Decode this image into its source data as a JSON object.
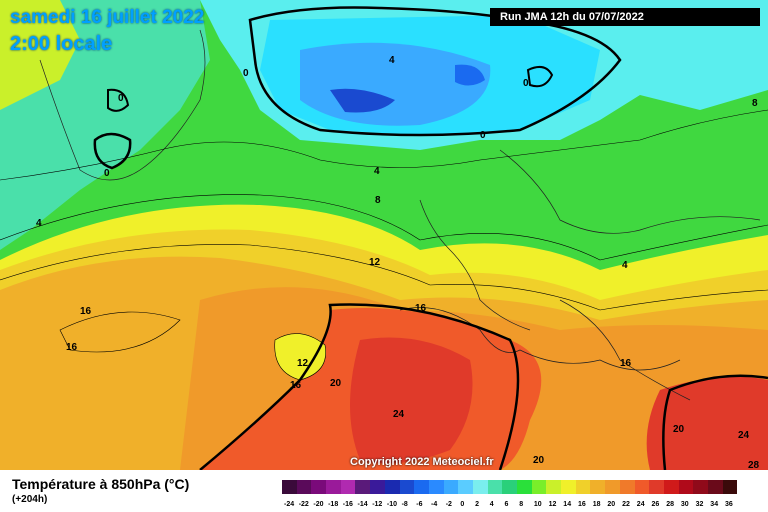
{
  "header": {
    "title": "samedi 16 juillet 2022",
    "subtitle": "2:00 locale",
    "run_info": "Run JMA 12h du 07/07/2022"
  },
  "copyright": "Copyright 2022 Meteociel.fr",
  "footer": {
    "title": "Température à 850hPa (°C)",
    "lead": "(+204h)"
  },
  "colorbar": {
    "labels": [
      "-24",
      "-22",
      "-20",
      "-18",
      "-16",
      "-14",
      "-12",
      "-10",
      "-8",
      "-6",
      "-4",
      "-2",
      "0",
      "2",
      "4",
      "6",
      "8",
      "10",
      "12",
      "14",
      "16",
      "18",
      "20",
      "22",
      "24",
      "26",
      "28",
      "30",
      "32",
      "34",
      "36"
    ],
    "colors": [
      "#3a0a3a",
      "#5a0a5a",
      "#7a0a7a",
      "#9a1a9a",
      "#b02ab0",
      "#5a1a7a",
      "#3a1a9a",
      "#1a2ab0",
      "#1a4ad0",
      "#1a6af0",
      "#2a8aff",
      "#3aaaff",
      "#5accff",
      "#7aeeee",
      "#4ae0aa",
      "#2ad07a",
      "#2ae03a",
      "#7aee2a",
      "#caf02a",
      "#f0f02a",
      "#f0d02a",
      "#f0b02a",
      "#f09a2a",
      "#f07a2a",
      "#f05a2a",
      "#e03a2a",
      "#d01a1a",
      "#b00a1a",
      "#900a1a",
      "#6a0a1a",
      "#3a0a0a"
    ]
  },
  "map": {
    "contour_labels": [
      "0",
      "0",
      "0",
      "0",
      "0",
      "4",
      "4",
      "4",
      "4",
      "8",
      "8",
      "12",
      "12",
      "16",
      "16",
      "16",
      "16",
      "20",
      "20",
      "20",
      "24",
      "24",
      "28"
    ]
  }
}
